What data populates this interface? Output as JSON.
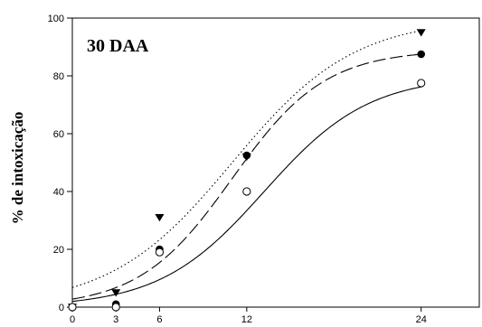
{
  "chart_data": {
    "type": "scatter",
    "title": "30 DAA",
    "xlabel": "",
    "ylabel": "% de intoxicação",
    "xlim": [
      0,
      28
    ],
    "ylim": [
      0,
      100
    ],
    "x_ticks": [
      0,
      3,
      6,
      12,
      24
    ],
    "y_ticks": [
      0,
      20,
      40,
      60,
      80,
      100
    ],
    "grid": false,
    "series": [
      {
        "marker": "triangle-down",
        "line_style": "dotted",
        "color": "#000000",
        "x": [
          0,
          3,
          6,
          12,
          24
        ],
        "y": [
          0,
          5,
          31,
          52,
          95
        ],
        "fit": {
          "a": 100,
          "x0": 11.0,
          "b": 4.2
        }
      },
      {
        "marker": "circle-filled",
        "line_style": "dashed",
        "color": "#000000",
        "x": [
          0,
          3,
          6,
          12,
          24
        ],
        "y": [
          0,
          1,
          20,
          52.5,
          87.5
        ],
        "fit": {
          "a": 89,
          "x0": 11.0,
          "b": 3.2
        }
      },
      {
        "marker": "circle-open",
        "line_style": "solid",
        "color": "#000000",
        "x": [
          0,
          3,
          6,
          12,
          24
        ],
        "y": [
          0,
          0,
          19,
          40,
          77.5
        ],
        "fit": {
          "a": 80,
          "x0": 13.2,
          "b": 3.6
        }
      }
    ]
  }
}
